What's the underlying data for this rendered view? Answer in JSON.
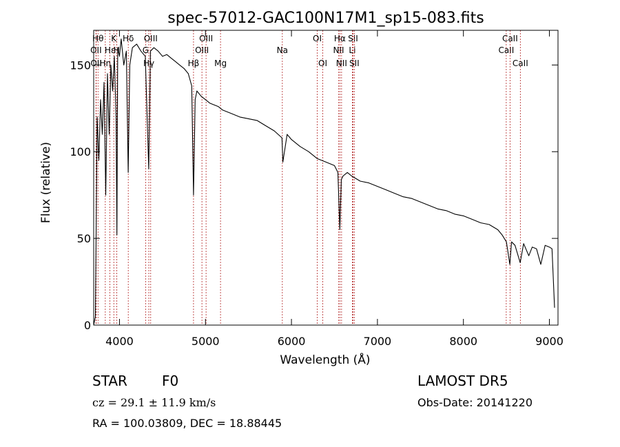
{
  "header": {
    "title": "spec-57012-GAC100N17M1_sp15-083.fits"
  },
  "chart_data": {
    "type": "line",
    "title": "spec-57012-GAC100N17M1_sp15-083.fits",
    "xlabel": "Wavelength (Å)",
    "ylabel": "Flux (relative)",
    "xlim": [
      3700,
      9100
    ],
    "ylim": [
      0,
      170
    ],
    "xticks": [
      4000,
      5000,
      6000,
      7000,
      8000,
      9000
    ],
    "yticks": [
      0,
      50,
      100,
      150
    ],
    "grid": false,
    "line_color": "#000000",
    "marker_color": "#b22222",
    "series": [
      {
        "x": [
          3700,
          3720,
          3740,
          3760,
          3780,
          3800,
          3820,
          3840,
          3860,
          3880,
          3900,
          3920,
          3940,
          3960,
          3970,
          3980,
          4000,
          4020,
          4050,
          4080,
          4101,
          4120,
          4150,
          4200,
          4250,
          4300,
          4340,
          4360,
          4400,
          4450,
          4500,
          4550,
          4600,
          4650,
          4700,
          4750,
          4800,
          4840,
          4861,
          4880,
          4900,
          4950,
          5000,
          5050,
          5100,
          5150,
          5200,
          5300,
          5400,
          5500,
          5600,
          5700,
          5800,
          5890,
          5900,
          5950,
          6000,
          6100,
          6200,
          6300,
          6400,
          6500,
          6540,
          6563,
          6580,
          6600,
          6650,
          6700,
          6800,
          6900,
          7000,
          7100,
          7200,
          7300,
          7400,
          7500,
          7600,
          7700,
          7800,
          7900,
          8000,
          8100,
          8200,
          8300,
          8400,
          8450,
          8500,
          8540,
          8560,
          8600,
          8660,
          8700,
          8760,
          8800,
          8850,
          8900,
          8950,
          9000,
          9030,
          9060
        ],
        "y": [
          0,
          5,
          120,
          95,
          130,
          110,
          140,
          75,
          145,
          110,
          150,
          135,
          155,
          120,
          52,
          160,
          155,
          165,
          150,
          158,
          88,
          150,
          160,
          162,
          158,
          155,
          90,
          158,
          160,
          158,
          155,
          156,
          154,
          152,
          150,
          148,
          145,
          138,
          75,
          130,
          135,
          132,
          130,
          128,
          127,
          126,
          124,
          122,
          120,
          119,
          118,
          115,
          112,
          108,
          94,
          110,
          107,
          103,
          100,
          96,
          94,
          92,
          88,
          55,
          84,
          86,
          88,
          86,
          83,
          82,
          80,
          78,
          76,
          74,
          73,
          71,
          69,
          67,
          66,
          64,
          63,
          61,
          59,
          58,
          55,
          52,
          48,
          35,
          48,
          46,
          36,
          47,
          40,
          45,
          44,
          35,
          46,
          45,
          44,
          10
        ]
      }
    ],
    "lines": [
      {
        "name": "Hθ",
        "x": 3750,
        "tier": 1
      },
      {
        "name": "OII",
        "x": 3727,
        "tier": 2
      },
      {
        "name": "OII",
        "x": 3729,
        "tier": 3
      },
      {
        "name": "Hη",
        "x": 3835,
        "tier": 3
      },
      {
        "name": "Hε",
        "x": 3889,
        "tier": 2
      },
      {
        "name": "K",
        "x": 3934,
        "tier": 1
      },
      {
        "name": "H",
        "x": 3968,
        "tier": 2
      },
      {
        "name": "Hδ",
        "x": 4102,
        "tier": 1
      },
      {
        "name": "G",
        "x": 4304,
        "tier": 2
      },
      {
        "name": "Hγ",
        "x": 4341,
        "tier": 3
      },
      {
        "name": "OIII",
        "x": 4363,
        "tier": 1
      },
      {
        "name": "Hβ",
        "x": 4861,
        "tier": 3
      },
      {
        "name": "OIII",
        "x": 4959,
        "tier": 2
      },
      {
        "name": "OIII",
        "x": 5007,
        "tier": 1
      },
      {
        "name": "Mg",
        "x": 5175,
        "tier": 3
      },
      {
        "name": "Na",
        "x": 5894,
        "tier": 2
      },
      {
        "name": "OI",
        "x": 6300,
        "tier": 1
      },
      {
        "name": "OI",
        "x": 6364,
        "tier": 3
      },
      {
        "name": "NII",
        "x": 6548,
        "tier": 2
      },
      {
        "name": "Hα",
        "x": 6563,
        "tier": 1
      },
      {
        "name": "NII",
        "x": 6583,
        "tier": 3
      },
      {
        "name": "Li",
        "x": 6708,
        "tier": 2
      },
      {
        "name": "SII",
        "x": 6716,
        "tier": 1
      },
      {
        "name": "SII",
        "x": 6731,
        "tier": 3
      },
      {
        "name": "CaII",
        "x": 8498,
        "tier": 2
      },
      {
        "name": "CaII",
        "x": 8542,
        "tier": 1
      },
      {
        "name": "CaII",
        "x": 8662,
        "tier": 3
      }
    ]
  },
  "info": {
    "class_label": "STAR",
    "subclass": "F0",
    "survey": "LAMOST DR5",
    "velocity": "cz = 29.1 ± 11.9 km/s",
    "obs_date": "Obs-Date: 20141220",
    "coords": "RA = 100.03809, DEC =  18.88445"
  }
}
